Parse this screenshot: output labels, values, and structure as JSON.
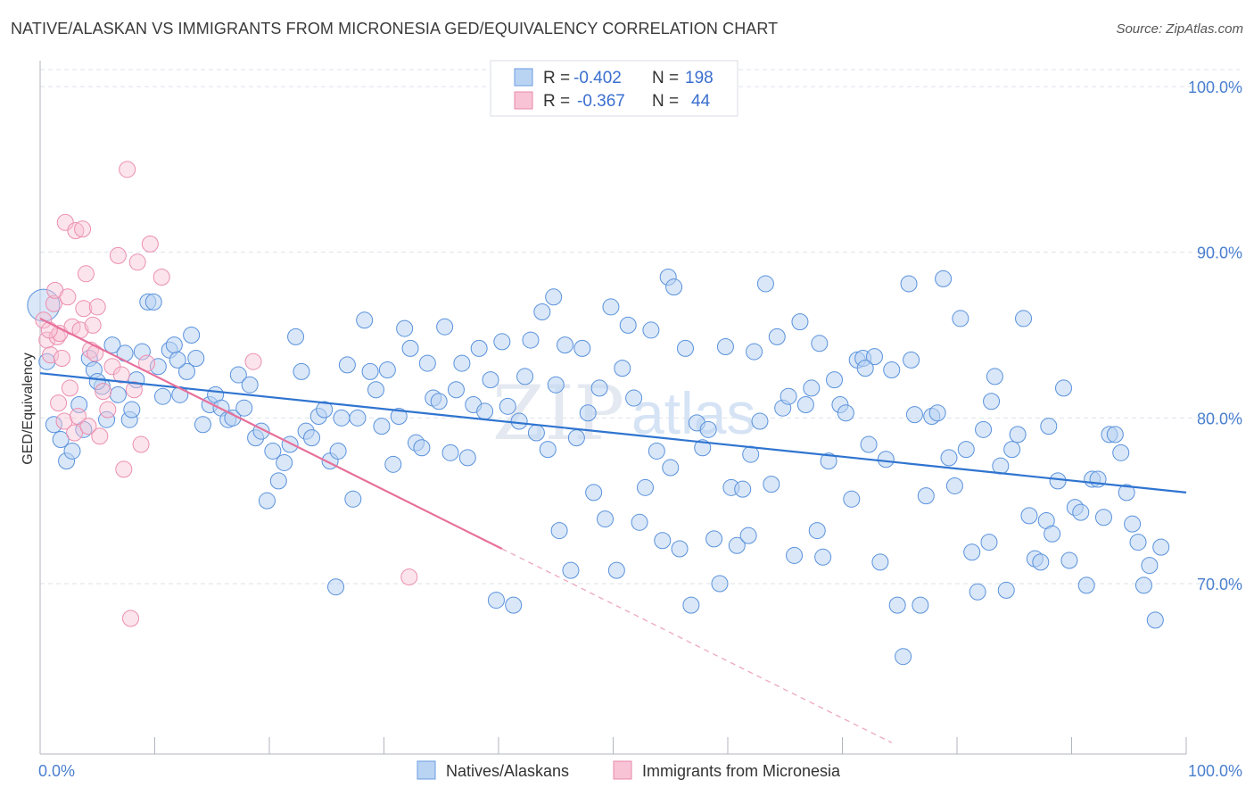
{
  "title": "NATIVE/ALASKAN VS IMMIGRANTS FROM MICRONESIA GED/EQUIVALENCY CORRELATION CHART",
  "source": "Source: ZipAtlas.com",
  "watermark": {
    "zip": "ZIP",
    "atlas": "atlas"
  },
  "legend": {
    "row1": {
      "r_label": "R =",
      "r_value": "-0.402",
      "n_label": "N =",
      "n_value": "198"
    },
    "row2": {
      "r_label": "R =",
      "r_value": "-0.367",
      "n_label": "N =",
      "n_value": "44"
    }
  },
  "bottom_legend": {
    "series1": "Natives/Alaskans",
    "series2": "Immigrants from Micronesia"
  },
  "colors": {
    "blue": "#4a86d8",
    "blue_fill": "#b9d3f3",
    "pink": "#e8709a",
    "pink_fill": "#f8c3d5",
    "grid": "#dde2ea",
    "tick_text": "#4a7fcf"
  },
  "chart_data": {
    "type": "scatter",
    "title": "NATIVE/ALASKAN VS IMMIGRANTS FROM MICRONESIA GED/EQUIVALENCY CORRELATION CHART",
    "xlabel": "",
    "ylabel": "GED/Equivalency",
    "xlim": [
      0,
      100
    ],
    "ylim": [
      60,
      102
    ],
    "x_tick_labels": [
      "0.0%",
      "100.0%"
    ],
    "y_ticks": [
      70,
      80,
      90,
      100
    ],
    "y_tick_labels": [
      "70.0%",
      "80.0%",
      "90.0%",
      "100.0%"
    ],
    "grid": true,
    "legend_position": "top-center",
    "series": [
      {
        "name": "Natives/Alaskans",
        "color": "#4a86d8",
        "r": -0.402,
        "n": 198,
        "trend": {
          "x": [
            0,
            100
          ],
          "y": [
            82.7,
            75.5
          ]
        },
        "points": [
          [
            0.3,
            86.8
          ],
          [
            0.6,
            83.4
          ],
          [
            1.2,
            79.6
          ],
          [
            1.8,
            78.7
          ],
          [
            2.3,
            77.4
          ],
          [
            2.8,
            78.0
          ],
          [
            3.4,
            80.8
          ],
          [
            3.8,
            79.3
          ],
          [
            4.3,
            83.6
          ],
          [
            4.7,
            82.9
          ],
          [
            5.4,
            81.9
          ],
          [
            5.8,
            79.9
          ],
          [
            6.3,
            84.4
          ],
          [
            6.8,
            81.4
          ],
          [
            7.4,
            83.9
          ],
          [
            7.8,
            79.9
          ],
          [
            8.4,
            82.3
          ],
          [
            8.9,
            84.0
          ],
          [
            9.4,
            87.0
          ],
          [
            9.9,
            87.0
          ],
          [
            10.3,
            83.1
          ],
          [
            10.7,
            81.3
          ],
          [
            11.3,
            84.1
          ],
          [
            11.7,
            84.4
          ],
          [
            12.2,
            81.4
          ],
          [
            12.8,
            82.8
          ],
          [
            13.2,
            85.0
          ],
          [
            13.6,
            83.6
          ],
          [
            14.2,
            79.6
          ],
          [
            14.8,
            80.8
          ],
          [
            15.3,
            81.4
          ],
          [
            15.8,
            80.6
          ],
          [
            16.4,
            79.9
          ],
          [
            16.8,
            80.0
          ],
          [
            17.3,
            82.6
          ],
          [
            17.8,
            80.6
          ],
          [
            18.3,
            82.0
          ],
          [
            18.8,
            78.8
          ],
          [
            19.3,
            79.2
          ],
          [
            19.8,
            75.0
          ],
          [
            20.3,
            78.0
          ],
          [
            20.8,
            76.2
          ],
          [
            21.3,
            77.3
          ],
          [
            21.8,
            78.4
          ],
          [
            22.3,
            84.9
          ],
          [
            22.8,
            82.8
          ],
          [
            23.2,
            79.2
          ],
          [
            23.7,
            78.8
          ],
          [
            24.3,
            80.1
          ],
          [
            24.8,
            80.5
          ],
          [
            25.3,
            77.4
          ],
          [
            25.8,
            69.8
          ],
          [
            26.3,
            80.0
          ],
          [
            26.8,
            83.2
          ],
          [
            27.3,
            75.1
          ],
          [
            27.7,
            80.0
          ],
          [
            28.3,
            85.9
          ],
          [
            28.8,
            82.8
          ],
          [
            29.3,
            81.7
          ],
          [
            29.8,
            79.5
          ],
          [
            30.3,
            82.9
          ],
          [
            30.8,
            77.2
          ],
          [
            31.3,
            80.1
          ],
          [
            31.8,
            85.4
          ],
          [
            32.3,
            84.2
          ],
          [
            32.8,
            78.5
          ],
          [
            33.3,
            78.2
          ],
          [
            33.8,
            83.3
          ],
          [
            34.3,
            81.2
          ],
          [
            34.8,
            81.0
          ],
          [
            35.3,
            85.5
          ],
          [
            35.8,
            77.9
          ],
          [
            36.3,
            81.7
          ],
          [
            36.8,
            83.3
          ],
          [
            37.3,
            77.6
          ],
          [
            37.8,
            80.8
          ],
          [
            38.3,
            84.2
          ],
          [
            38.8,
            80.4
          ],
          [
            39.3,
            82.3
          ],
          [
            39.8,
            69.0
          ],
          [
            40.3,
            84.6
          ],
          [
            40.8,
            80.7
          ],
          [
            41.3,
            68.7
          ],
          [
            41.8,
            79.8
          ],
          [
            42.3,
            82.5
          ],
          [
            42.8,
            84.7
          ],
          [
            43.3,
            79.1
          ],
          [
            43.8,
            86.4
          ],
          [
            44.3,
            78.1
          ],
          [
            44.8,
            87.3
          ],
          [
            45.3,
            73.2
          ],
          [
            45.8,
            84.4
          ],
          [
            46.3,
            70.8
          ],
          [
            46.8,
            78.8
          ],
          [
            47.3,
            84.2
          ],
          [
            47.8,
            80.3
          ],
          [
            48.3,
            75.5
          ],
          [
            48.8,
            81.8
          ],
          [
            49.3,
            73.9
          ],
          [
            49.8,
            86.7
          ],
          [
            50.3,
            70.8
          ],
          [
            50.8,
            83.0
          ],
          [
            51.3,
            85.6
          ],
          [
            51.8,
            81.2
          ],
          [
            52.3,
            73.7
          ],
          [
            52.8,
            75.8
          ],
          [
            53.3,
            85.3
          ],
          [
            53.8,
            78.0
          ],
          [
            54.3,
            72.6
          ],
          [
            54.8,
            88.5
          ],
          [
            55.3,
            87.9
          ],
          [
            55.8,
            72.1
          ],
          [
            56.3,
            84.2
          ],
          [
            56.8,
            68.7
          ],
          [
            57.3,
            79.7
          ],
          [
            57.8,
            78.2
          ],
          [
            58.3,
            79.3
          ],
          [
            58.8,
            72.7
          ],
          [
            59.3,
            70.0
          ],
          [
            59.8,
            84.3
          ],
          [
            60.3,
            75.8
          ],
          [
            60.8,
            72.3
          ],
          [
            61.3,
            75.7
          ],
          [
            61.8,
            72.9
          ],
          [
            62.3,
            84.0
          ],
          [
            62.8,
            79.8
          ],
          [
            63.3,
            88.1
          ],
          [
            63.8,
            76.0
          ],
          [
            64.3,
            84.9
          ],
          [
            64.8,
            80.6
          ],
          [
            65.3,
            81.3
          ],
          [
            65.8,
            71.7
          ],
          [
            66.3,
            85.8
          ],
          [
            66.8,
            80.8
          ],
          [
            67.3,
            81.8
          ],
          [
            67.8,
            73.2
          ],
          [
            68.3,
            71.6
          ],
          [
            68.8,
            77.4
          ],
          [
            69.3,
            82.3
          ],
          [
            69.8,
            80.8
          ],
          [
            70.3,
            80.3
          ],
          [
            70.8,
            75.1
          ],
          [
            71.3,
            83.5
          ],
          [
            71.8,
            83.6
          ],
          [
            72.3,
            78.4
          ],
          [
            72.8,
            83.7
          ],
          [
            73.3,
            71.3
          ],
          [
            73.8,
            77.5
          ],
          [
            74.3,
            82.9
          ],
          [
            74.8,
            68.7
          ],
          [
            75.3,
            65.6
          ],
          [
            75.8,
            88.1
          ],
          [
            76.3,
            80.2
          ],
          [
            76.8,
            68.7
          ],
          [
            77.3,
            75.3
          ],
          [
            77.8,
            80.1
          ],
          [
            78.3,
            80.3
          ],
          [
            78.8,
            88.4
          ],
          [
            79.3,
            77.6
          ],
          [
            79.8,
            75.9
          ],
          [
            80.3,
            86.0
          ],
          [
            80.8,
            78.1
          ],
          [
            81.3,
            71.9
          ],
          [
            81.8,
            69.5
          ],
          [
            82.3,
            79.3
          ],
          [
            82.8,
            72.5
          ],
          [
            83.3,
            82.5
          ],
          [
            83.8,
            77.1
          ],
          [
            84.3,
            69.6
          ],
          [
            84.8,
            78.1
          ],
          [
            85.3,
            79.0
          ],
          [
            85.8,
            86.0
          ],
          [
            86.3,
            74.1
          ],
          [
            86.8,
            71.5
          ],
          [
            87.3,
            71.3
          ],
          [
            87.8,
            73.8
          ],
          [
            88.3,
            73.0
          ],
          [
            88.8,
            76.2
          ],
          [
            89.3,
            81.8
          ],
          [
            89.8,
            71.4
          ],
          [
            90.3,
            74.6
          ],
          [
            90.8,
            74.3
          ],
          [
            91.3,
            69.9
          ],
          [
            91.8,
            76.3
          ],
          [
            92.3,
            76.3
          ],
          [
            92.8,
            74.0
          ],
          [
            93.3,
            79.0
          ],
          [
            93.8,
            79.0
          ],
          [
            94.3,
            77.9
          ],
          [
            94.8,
            75.5
          ],
          [
            95.3,
            73.6
          ],
          [
            95.8,
            72.5
          ],
          [
            96.3,
            69.9
          ],
          [
            96.8,
            71.1
          ],
          [
            97.3,
            67.8
          ],
          [
            97.8,
            72.2
          ],
          [
            5.0,
            82.2
          ],
          [
            8.0,
            80.5
          ],
          [
            12.0,
            83.5
          ],
          [
            26.0,
            78.0
          ],
          [
            45.0,
            82.0
          ],
          [
            55.0,
            77.0
          ],
          [
            62.0,
            77.8
          ],
          [
            68.0,
            84.5
          ],
          [
            72.0,
            83.0
          ],
          [
            76.0,
            83.5
          ],
          [
            83.0,
            81.0
          ],
          [
            88.0,
            79.5
          ]
        ]
      },
      {
        "name": "Immigrants from Micronesia",
        "color": "#e8709a",
        "r": -0.367,
        "n": 44,
        "trend": {
          "x": [
            0,
            40.3
          ],
          "y": [
            86.0,
            72.1
          ]
        },
        "trend_dashed": {
          "x": [
            40.3,
            74.3
          ],
          "y": [
            72.1,
            60.4
          ]
        },
        "points": [
          [
            0.3,
            85.9
          ],
          [
            0.6,
            84.7
          ],
          [
            0.9,
            83.8
          ],
          [
            1.2,
            86.9
          ],
          [
            1.3,
            87.7
          ],
          [
            1.5,
            84.9
          ],
          [
            1.7,
            85.1
          ],
          [
            1.9,
            83.6
          ],
          [
            2.1,
            79.8
          ],
          [
            2.2,
            91.8
          ],
          [
            2.4,
            87.3
          ],
          [
            2.6,
            81.8
          ],
          [
            2.8,
            85.5
          ],
          [
            3.0,
            79.1
          ],
          [
            3.1,
            91.3
          ],
          [
            3.3,
            80.1
          ],
          [
            3.5,
            85.3
          ],
          [
            3.7,
            91.4
          ],
          [
            3.8,
            86.6
          ],
          [
            4.0,
            88.7
          ],
          [
            4.2,
            79.5
          ],
          [
            4.4,
            84.1
          ],
          [
            4.6,
            85.6
          ],
          [
            4.8,
            83.9
          ],
          [
            5.0,
            86.7
          ],
          [
            5.2,
            78.9
          ],
          [
            5.5,
            81.6
          ],
          [
            5.9,
            80.5
          ],
          [
            6.3,
            83.1
          ],
          [
            6.8,
            89.8
          ],
          [
            7.1,
            82.6
          ],
          [
            7.3,
            76.9
          ],
          [
            7.6,
            95.0
          ],
          [
            7.9,
            67.9
          ],
          [
            8.2,
            81.7
          ],
          [
            8.5,
            89.4
          ],
          [
            8.8,
            78.4
          ],
          [
            9.3,
            83.3
          ],
          [
            9.6,
            90.5
          ],
          [
            10.6,
            88.5
          ],
          [
            18.6,
            83.4
          ],
          [
            32.2,
            70.4
          ],
          [
            0.8,
            85.3
          ],
          [
            1.6,
            80.9
          ]
        ]
      }
    ]
  }
}
